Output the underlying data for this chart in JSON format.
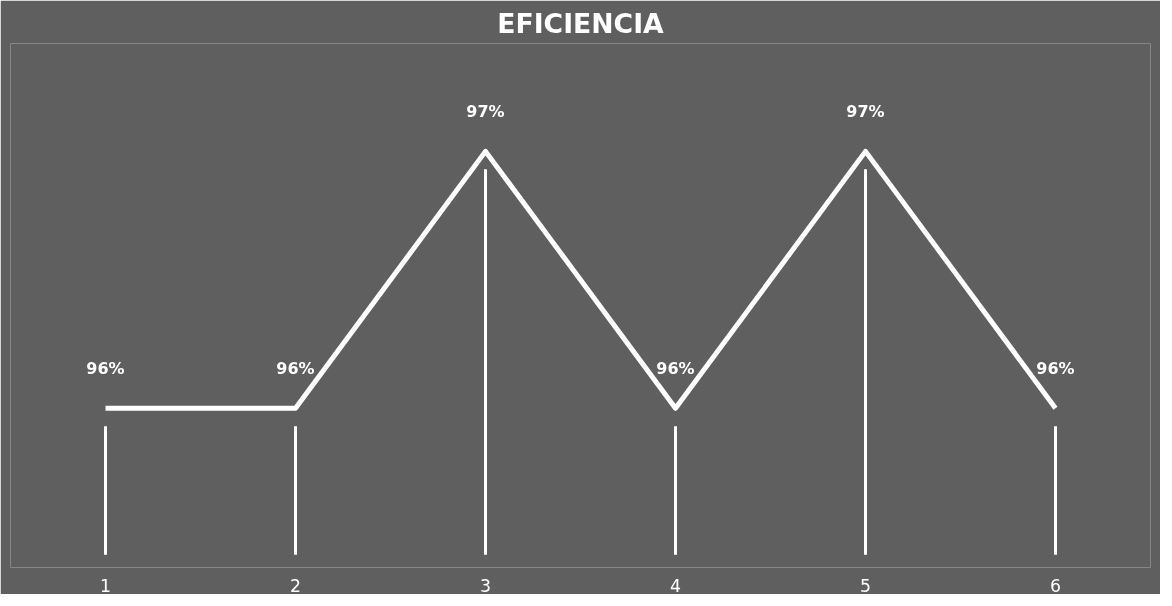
{
  "chart_data": {
    "type": "line",
    "title": "EFICIENCIA",
    "categories": [
      "1",
      "2",
      "3",
      "4",
      "5",
      "6"
    ],
    "series": [
      {
        "color": "#ffffff",
        "values": [
          96,
          96,
          97,
          96,
          97,
          96
        ],
        "value_labels": [
          "96%",
          "96%",
          "97%",
          "96%",
          "97%",
          "96%"
        ]
      }
    ],
    "line_style": "solid"
  }
}
